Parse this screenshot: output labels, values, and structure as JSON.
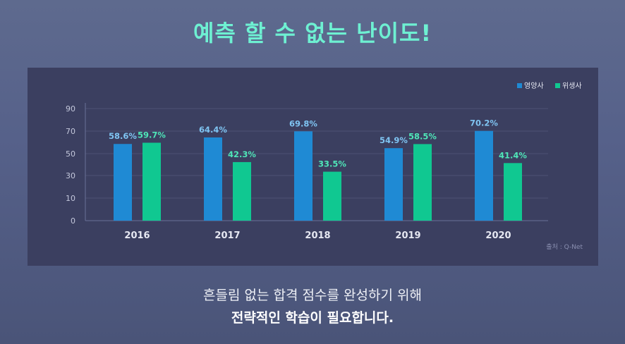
{
  "header": {
    "title": "예측 할 수 없는 난이도!"
  },
  "footer": {
    "line1": "흔들림 없는 합격 점수를 완성하기 위해",
    "line2": "전략적인 학습이 필요합니다."
  },
  "chart_data": {
    "type": "bar",
    "categories": [
      "2016",
      "2017",
      "2018",
      "2019",
      "2020"
    ],
    "series": [
      {
        "name": "영양사",
        "color": "#1f8ad4",
        "values": [
          58.6,
          64.4,
          69.8,
          54.9,
          70.2
        ],
        "labels": [
          "58.6%",
          "64.4%",
          "69.8%",
          "54.9%",
          "70.2%"
        ]
      },
      {
        "name": "위생사",
        "color": "#10c891",
        "values": [
          59.7,
          42.3,
          33.5,
          58.5,
          41.4
        ],
        "labels": [
          "59.7%",
          "42.3%",
          "33.5%",
          "58.5%",
          "41.4%"
        ]
      }
    ],
    "yticks": [
      "0",
      "10",
      "30",
      "50",
      "70",
      "90"
    ],
    "ylim": [
      0,
      100
    ],
    "grid": true,
    "legend": "top-right",
    "source": "출처 : Q-Net",
    "label_colors": [
      "#7fc4f2",
      "#4fe6b8"
    ]
  }
}
